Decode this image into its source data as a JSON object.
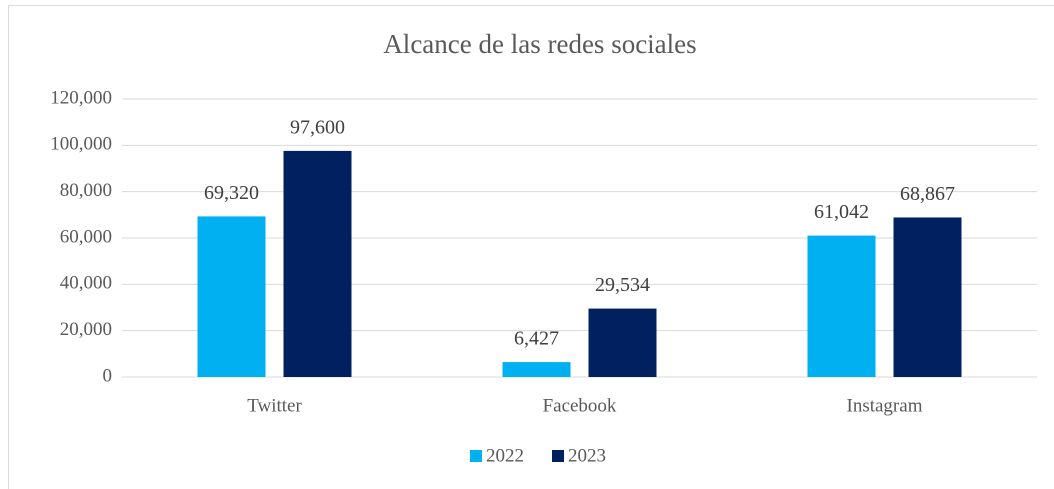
{
  "chart_data": {
    "type": "bar",
    "title": "Alcance de las redes sociales",
    "categories": [
      "Twitter",
      "Facebook",
      "Instagram"
    ],
    "series": [
      {
        "name": "2022",
        "color": "#00b0f0",
        "values": [
          69320,
          6427,
          61042
        ],
        "value_labels": [
          "69,320",
          "6,427",
          "61,042"
        ]
      },
      {
        "name": "2023",
        "color": "#002060",
        "values": [
          97600,
          29534,
          68867
        ],
        "value_labels": [
          "97,600",
          "29,534",
          "68,867"
        ]
      }
    ],
    "ylim": [
      0,
      120000
    ],
    "yticks": [
      0,
      {
        "value": 20000,
        "label": "20,000"
      },
      {
        "value": 40000,
        "label": "40,000"
      },
      {
        "value": 60000,
        "label": "60,000"
      },
      {
        "value": 80000,
        "label": "80,000"
      },
      {
        "value": 100000,
        "label": "100,000"
      },
      {
        "value": 120000,
        "label": "120,000"
      }
    ],
    "grid": true,
    "legend": "bottom"
  }
}
